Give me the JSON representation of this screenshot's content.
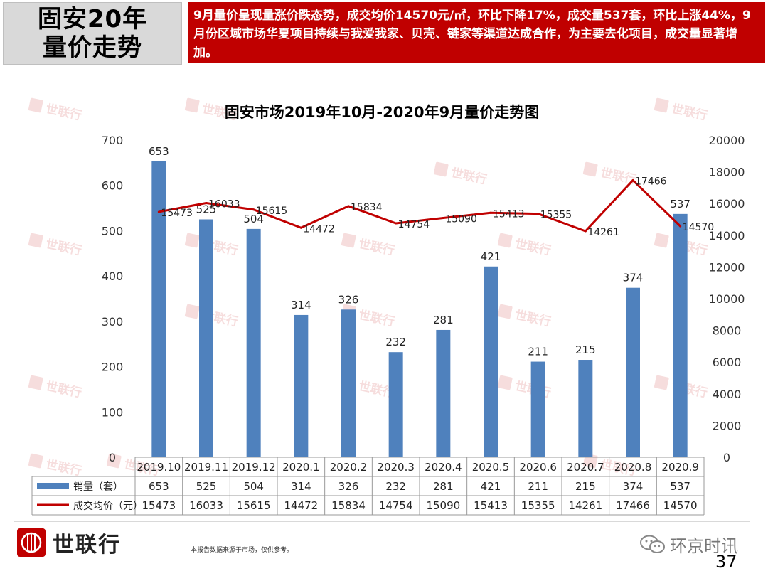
{
  "header": {
    "title_line1": "固安20年",
    "title_line2": "量价走势",
    "summary": "9月量价呈现量涨价跌态势，成交均价14570元/㎡，环比下降17%，成交量537套，环比上涨44%，9月份区域市场华夏项目持续与我爱我家、贝壳、链家等渠道达成合作，为主要去化项目，成交量显著增加。"
  },
  "chart_data": {
    "type": "bar",
    "title": "固安市场2019年10月-2020年9月量价走势图",
    "categories": [
      "2019.10",
      "2019.11",
      "2019.12",
      "2020.1",
      "2020.2",
      "2020.3",
      "2020.4",
      "2020.5",
      "2020.6",
      "2020.7",
      "2020.8",
      "2020.9"
    ],
    "series": [
      {
        "name": "销量（套）",
        "type": "bar",
        "axis": "left",
        "color": "#4f81bd",
        "values": [
          653,
          525,
          504,
          314,
          326,
          232,
          281,
          421,
          211,
          215,
          374,
          537
        ]
      },
      {
        "name": "成交均价（元）",
        "type": "line",
        "axis": "right",
        "color": "#c00000",
        "values": [
          15473,
          16033,
          15615,
          14472,
          15834,
          14754,
          15090,
          15413,
          15355,
          14261,
          17466,
          14570
        ]
      }
    ],
    "left_axis": {
      "min": 0,
      "max": 700,
      "ticks": [
        "0",
        "100",
        "200",
        "300",
        "400",
        "500",
        "600",
        "700"
      ]
    },
    "right_axis": {
      "min": 0,
      "max": 20000,
      "ticks": [
        "0",
        "2000",
        "4000",
        "6000",
        "8000",
        "10000",
        "12000",
        "14000",
        "16000",
        "18000",
        "20000"
      ]
    },
    "data_table": true,
    "grid": false
  },
  "watermark_text": "世联行",
  "footer": {
    "brand": "世联行",
    "note": "本报告数据来源于市场，仅供参考。",
    "wechat": "环京时讯",
    "page": "37"
  }
}
